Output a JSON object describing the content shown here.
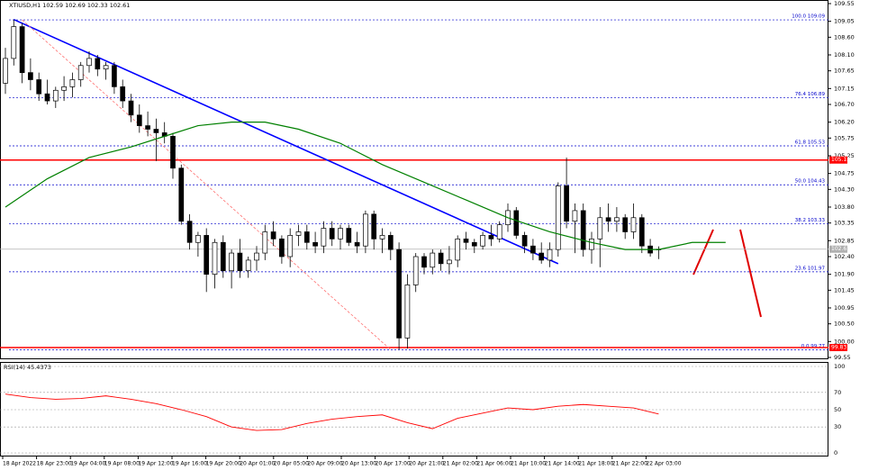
{
  "chart_data": [
    {
      "type": "candlestick",
      "title": "XTIUSD,H1 102.59 102.69 102.33 102.61",
      "ylim": [
        99.55,
        109.55
      ],
      "yticks": [
        109.55,
        109.05,
        {
          "value": 108.6,
          "label": "108.60"
        },
        {
          "value": 108.1,
          "label": "108.10"
        },
        107.65,
        107.15,
        {
          "value": 106.7,
          "label": "106.70"
        },
        {
          "value": 106.2,
          "label": "106.20"
        },
        105.75,
        105.25,
        104.75,
        {
          "value": 104.3,
          "label": "104.30"
        },
        {
          "value": 103.8,
          "label": "103.80"
        },
        103.35,
        102.85,
        {
          "value": 102.4,
          "label": "102.40"
        },
        {
          "value": 101.9,
          "label": "101.90"
        },
        101.45,
        100.95,
        {
          "value": 100.5,
          "label": "100.50"
        },
        {
          "value": 100,
          "label": "100.00"
        },
        99.55
      ],
      "x_labels": [
        "18 Apr 2022",
        "18 Apr 23:00",
        "19 Apr 04:00",
        "19 Apr 08:00",
        "19 Apr 12:00",
        "19 Apr 16:00",
        "19 Apr 20:00",
        "20 Apr 01:00",
        "20 Apr 05:00",
        "20 Apr 09:00",
        "20 Apr 13:00",
        "20 Apr 17:00",
        "20 Apr 21:00",
        "21 Apr 02:00",
        "21 Apr 06:00",
        "21 Apr 10:00",
        "21 Apr 14:00",
        "21 Apr 18:00",
        "21 Apr 22:00",
        "22 Apr 03:00"
      ],
      "ohlc": [
        [
          107.3,
          108.3,
          107.0,
          108.0
        ],
        [
          108.0,
          109.1,
          107.8,
          108.9
        ],
        [
          108.9,
          109.0,
          107.3,
          107.6
        ],
        [
          107.6,
          108.0,
          107.1,
          107.4
        ],
        [
          107.4,
          107.6,
          106.8,
          107.0
        ],
        [
          107.0,
          107.4,
          106.7,
          106.8
        ],
        [
          106.8,
          107.2,
          106.6,
          107.1
        ],
        [
          107.1,
          107.5,
          106.8,
          107.2
        ],
        [
          107.2,
          107.6,
          106.9,
          107.4
        ],
        [
          107.4,
          107.9,
          107.2,
          107.8
        ],
        [
          107.8,
          108.2,
          107.6,
          108.0
        ],
        [
          108.0,
          108.1,
          107.5,
          107.7
        ],
        [
          107.7,
          107.9,
          107.4,
          107.8
        ],
        [
          107.8,
          107.9,
          107.0,
          107.2
        ],
        [
          107.2,
          107.4,
          106.6,
          106.8
        ],
        [
          106.8,
          107.0,
          106.2,
          106.4
        ],
        [
          106.4,
          106.7,
          105.9,
          106.1
        ],
        [
          106.1,
          106.5,
          105.8,
          106.0
        ],
        [
          106.0,
          106.3,
          105.1,
          105.9
        ],
        [
          105.9,
          106.2,
          105.6,
          105.8
        ],
        [
          105.8,
          105.9,
          104.6,
          104.9
        ],
        [
          104.9,
          105.0,
          103.3,
          103.4
        ],
        [
          103.4,
          103.6,
          102.6,
          102.8
        ],
        [
          102.8,
          103.1,
          102.4,
          103.0
        ],
        [
          103.0,
          103.2,
          101.4,
          101.9
        ],
        [
          101.9,
          102.9,
          101.5,
          102.8
        ],
        [
          102.8,
          103.0,
          101.8,
          102.0
        ],
        [
          102.0,
          102.6,
          101.5,
          102.5
        ],
        [
          102.5,
          102.9,
          101.8,
          102.0
        ],
        [
          102.0,
          102.4,
          101.8,
          102.3
        ],
        [
          102.3,
          102.7,
          102.0,
          102.5
        ],
        [
          102.5,
          103.3,
          102.3,
          103.1
        ],
        [
          103.1,
          103.4,
          102.7,
          102.9
        ],
        [
          102.9,
          103.0,
          102.2,
          102.4
        ],
        [
          102.4,
          103.2,
          102.1,
          103.0
        ],
        [
          103.0,
          103.3,
          102.7,
          103.1
        ],
        [
          103.1,
          103.3,
          102.6,
          102.8
        ],
        [
          102.8,
          103.1,
          102.5,
          102.7
        ],
        [
          102.7,
          103.4,
          102.5,
          103.2
        ],
        [
          103.2,
          103.4,
          102.7,
          102.9
        ],
        [
          102.9,
          103.3,
          102.6,
          103.2
        ],
        [
          103.2,
          103.3,
          102.7,
          102.8
        ],
        [
          102.8,
          103.1,
          102.5,
          102.7
        ],
        [
          102.7,
          103.7,
          102.5,
          103.6
        ],
        [
          103.6,
          103.7,
          102.6,
          102.9
        ],
        [
          102.9,
          103.2,
          102.5,
          103.0
        ],
        [
          103.0,
          103.1,
          102.3,
          102.6
        ],
        [
          102.6,
          102.8,
          99.77,
          100.1
        ],
        [
          100.1,
          101.9,
          99.8,
          101.6
        ],
        [
          101.6,
          102.5,
          101.4,
          102.4
        ],
        [
          102.4,
          102.5,
          101.9,
          102.1
        ],
        [
          102.1,
          102.6,
          101.9,
          102.5
        ],
        [
          102.5,
          102.6,
          102.0,
          102.2
        ],
        [
          102.2,
          102.7,
          101.9,
          102.3
        ],
        [
          102.3,
          103.0,
          102.1,
          102.9
        ],
        [
          102.9,
          103.1,
          102.6,
          102.8
        ],
        [
          102.8,
          102.9,
          102.5,
          102.7
        ],
        [
          102.7,
          103.1,
          102.6,
          103.0
        ],
        [
          103.0,
          103.3,
          102.7,
          102.9
        ],
        [
          102.9,
          103.4,
          102.8,
          103.3
        ],
        [
          103.3,
          103.9,
          103.1,
          103.7
        ],
        [
          103.7,
          103.8,
          102.9,
          103.0
        ],
        [
          103.0,
          103.1,
          102.5,
          102.7
        ],
        [
          102.7,
          102.9,
          102.3,
          102.5
        ],
        [
          102.5,
          102.8,
          102.2,
          102.3
        ],
        [
          102.3,
          102.8,
          102.1,
          102.6
        ],
        [
          102.6,
          104.5,
          102.4,
          104.4
        ],
        [
          104.4,
          105.2,
          103.2,
          103.4
        ],
        [
          103.4,
          103.9,
          102.5,
          103.7
        ],
        [
          103.7,
          103.9,
          102.4,
          102.6
        ],
        [
          102.6,
          103.1,
          102.2,
          102.9
        ],
        [
          102.9,
          103.8,
          102.1,
          103.5
        ],
        [
          103.5,
          103.9,
          103.1,
          103.4
        ],
        [
          103.4,
          103.8,
          103.1,
          103.5
        ],
        [
          103.5,
          103.6,
          102.9,
          103.1
        ],
        [
          103.1,
          103.9,
          102.9,
          103.5
        ],
        [
          103.5,
          103.6,
          102.5,
          102.7
        ],
        [
          102.7,
          102.9,
          102.4,
          102.5
        ],
        [
          102.59,
          102.69,
          102.33,
          102.61
        ]
      ],
      "moving_average": {
        "color": "#008000",
        "x": [
          0,
          5,
          10,
          15,
          19,
          23,
          27,
          31,
          35,
          40,
          45,
          50,
          55,
          60,
          65,
          70,
          74,
          78,
          82,
          86
        ],
        "values": [
          103.8,
          104.6,
          105.2,
          105.5,
          105.8,
          106.1,
          106.2,
          106.2,
          106.0,
          105.6,
          105.0,
          104.5,
          104.0,
          103.5,
          103.1,
          102.8,
          102.6,
          102.6,
          102.8,
          102.8
        ]
      },
      "trend_lines": [
        {
          "color": "#0000ff",
          "dashed": false,
          "x": [
            1,
            66
          ],
          "values": [
            109.1,
            102.2
          ]
        },
        {
          "color": "#ff7070",
          "dashed": true,
          "x": [
            2,
            46
          ],
          "values": [
            109.09,
            99.77
          ]
        }
      ],
      "fib_levels": {
        "color": "#0000cc",
        "levels": [
          {
            "label": "100.0 109.09",
            "value": 109.09
          },
          {
            "label": "76.4 106.89",
            "value": 106.89
          },
          {
            "label": "61.8 105.53",
            "value": 105.53
          },
          {
            "label": "50.0 104.43",
            "value": 104.43
          },
          {
            "label": "38.2 103.33",
            "value": 103.33
          },
          {
            "label": "23.6 101.97",
            "value": 101.97
          },
          {
            "label": "0.0 99.77",
            "value": 99.77
          }
        ]
      },
      "price_lines": [
        {
          "value": 105.13,
          "color": "#ff0000"
        },
        {
          "value": 99.83,
          "color": "#ff0000"
        },
        {
          "value": 102.61,
          "color": "#b0b0b0"
        }
      ]
    },
    {
      "type": "line",
      "title": "RSI(14) 45.4373",
      "ylim": [
        0,
        100
      ],
      "yticks": [
        100,
        70,
        50,
        30,
        0
      ],
      "color": "#ff0000",
      "x": [
        0,
        3,
        6,
        9,
        12,
        15,
        18,
        21,
        24,
        27,
        30,
        33,
        36,
        39,
        42,
        45,
        48,
        51,
        54,
        57,
        60,
        63,
        66,
        69,
        72,
        75,
        78
      ],
      "values": [
        68,
        64,
        62,
        63,
        66,
        62,
        57,
        50,
        42,
        30,
        26,
        27,
        34,
        39,
        42,
        44,
        35,
        28,
        40,
        46,
        52,
        50,
        54,
        56,
        54,
        52,
        45
      ]
    }
  ]
}
